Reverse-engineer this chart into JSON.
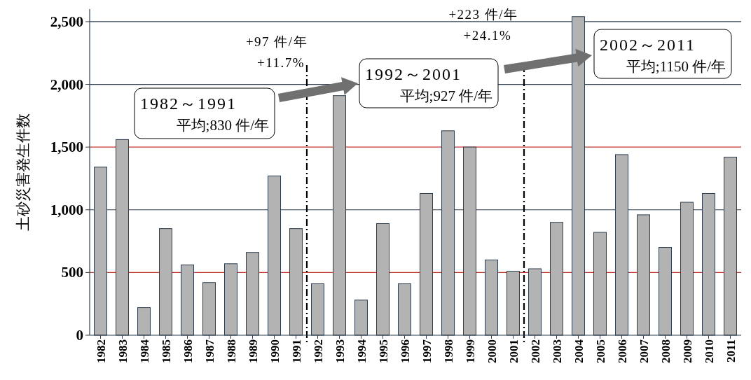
{
  "chart_data": {
    "type": "bar",
    "ylabel": "土砂災害発生件数",
    "x": [
      1982,
      1983,
      1984,
      1985,
      1986,
      1987,
      1988,
      1989,
      1990,
      1991,
      1992,
      1993,
      1994,
      1995,
      1996,
      1997,
      1998,
      1999,
      2000,
      2001,
      2002,
      2003,
      2004,
      2005,
      2006,
      2007,
      2008,
      2009,
      2010,
      2011
    ],
    "values": [
      1340,
      1560,
      220,
      850,
      560,
      420,
      570,
      660,
      1270,
      850,
      410,
      1910,
      280,
      890,
      410,
      1130,
      1630,
      1500,
      600,
      510,
      530,
      900,
      2540,
      820,
      1440,
      960,
      700,
      1060,
      1130,
      1420
    ],
    "color": "#b3b3b3",
    "xlim": [
      1981.5,
      2011.5
    ],
    "xticks": [
      1982,
      1983,
      1984,
      1985,
      1986,
      1987,
      1988,
      1989,
      1990,
      1991,
      1992,
      1993,
      1994,
      1995,
      1996,
      1997,
      1998,
      1999,
      2000,
      2001,
      2002,
      2003,
      2004,
      2005,
      2006,
      2007,
      2008,
      2009,
      2010,
      2011
    ],
    "ylim": [
      0,
      2600
    ],
    "yticks": [
      0,
      {
        "value": 500,
        "label": "500"
      },
      {
        "value": 1000,
        "label": "1,000"
      },
      {
        "value": 1500,
        "label": "1,500"
      },
      {
        "value": 2000,
        "label": "2,000"
      },
      {
        "value": 2500,
        "label": "2,500"
      }
    ],
    "ref_lines": [
      {
        "axis": "y",
        "value": 500,
        "color": "#c0392b"
      },
      {
        "axis": "y",
        "value": 1000,
        "color": "#2f3f4f"
      },
      {
        "axis": "y",
        "value": 2000,
        "color": "#2f3f4f"
      },
      {
        "axis": "y",
        "value": 2500,
        "color": "#2f3f4f"
      },
      {
        "axis": "y",
        "value": 1500,
        "color": "#c0392b"
      },
      {
        "axis": "x",
        "value": 1991.5,
        "color": "#000000",
        "line_style": "dashdot"
      },
      {
        "axis": "x",
        "value": 2001.5,
        "color": "#000000",
        "line_style": "dashdot"
      }
    ],
    "annotations": [
      "+97 件/年\n+11.7%",
      "1982～1991\n平均;830 件/年",
      "1992～2001\n平均;927 件/年",
      "+223 件/年\n+24.1%",
      "2002～2011\n平均;1150 件/年"
    ]
  }
}
